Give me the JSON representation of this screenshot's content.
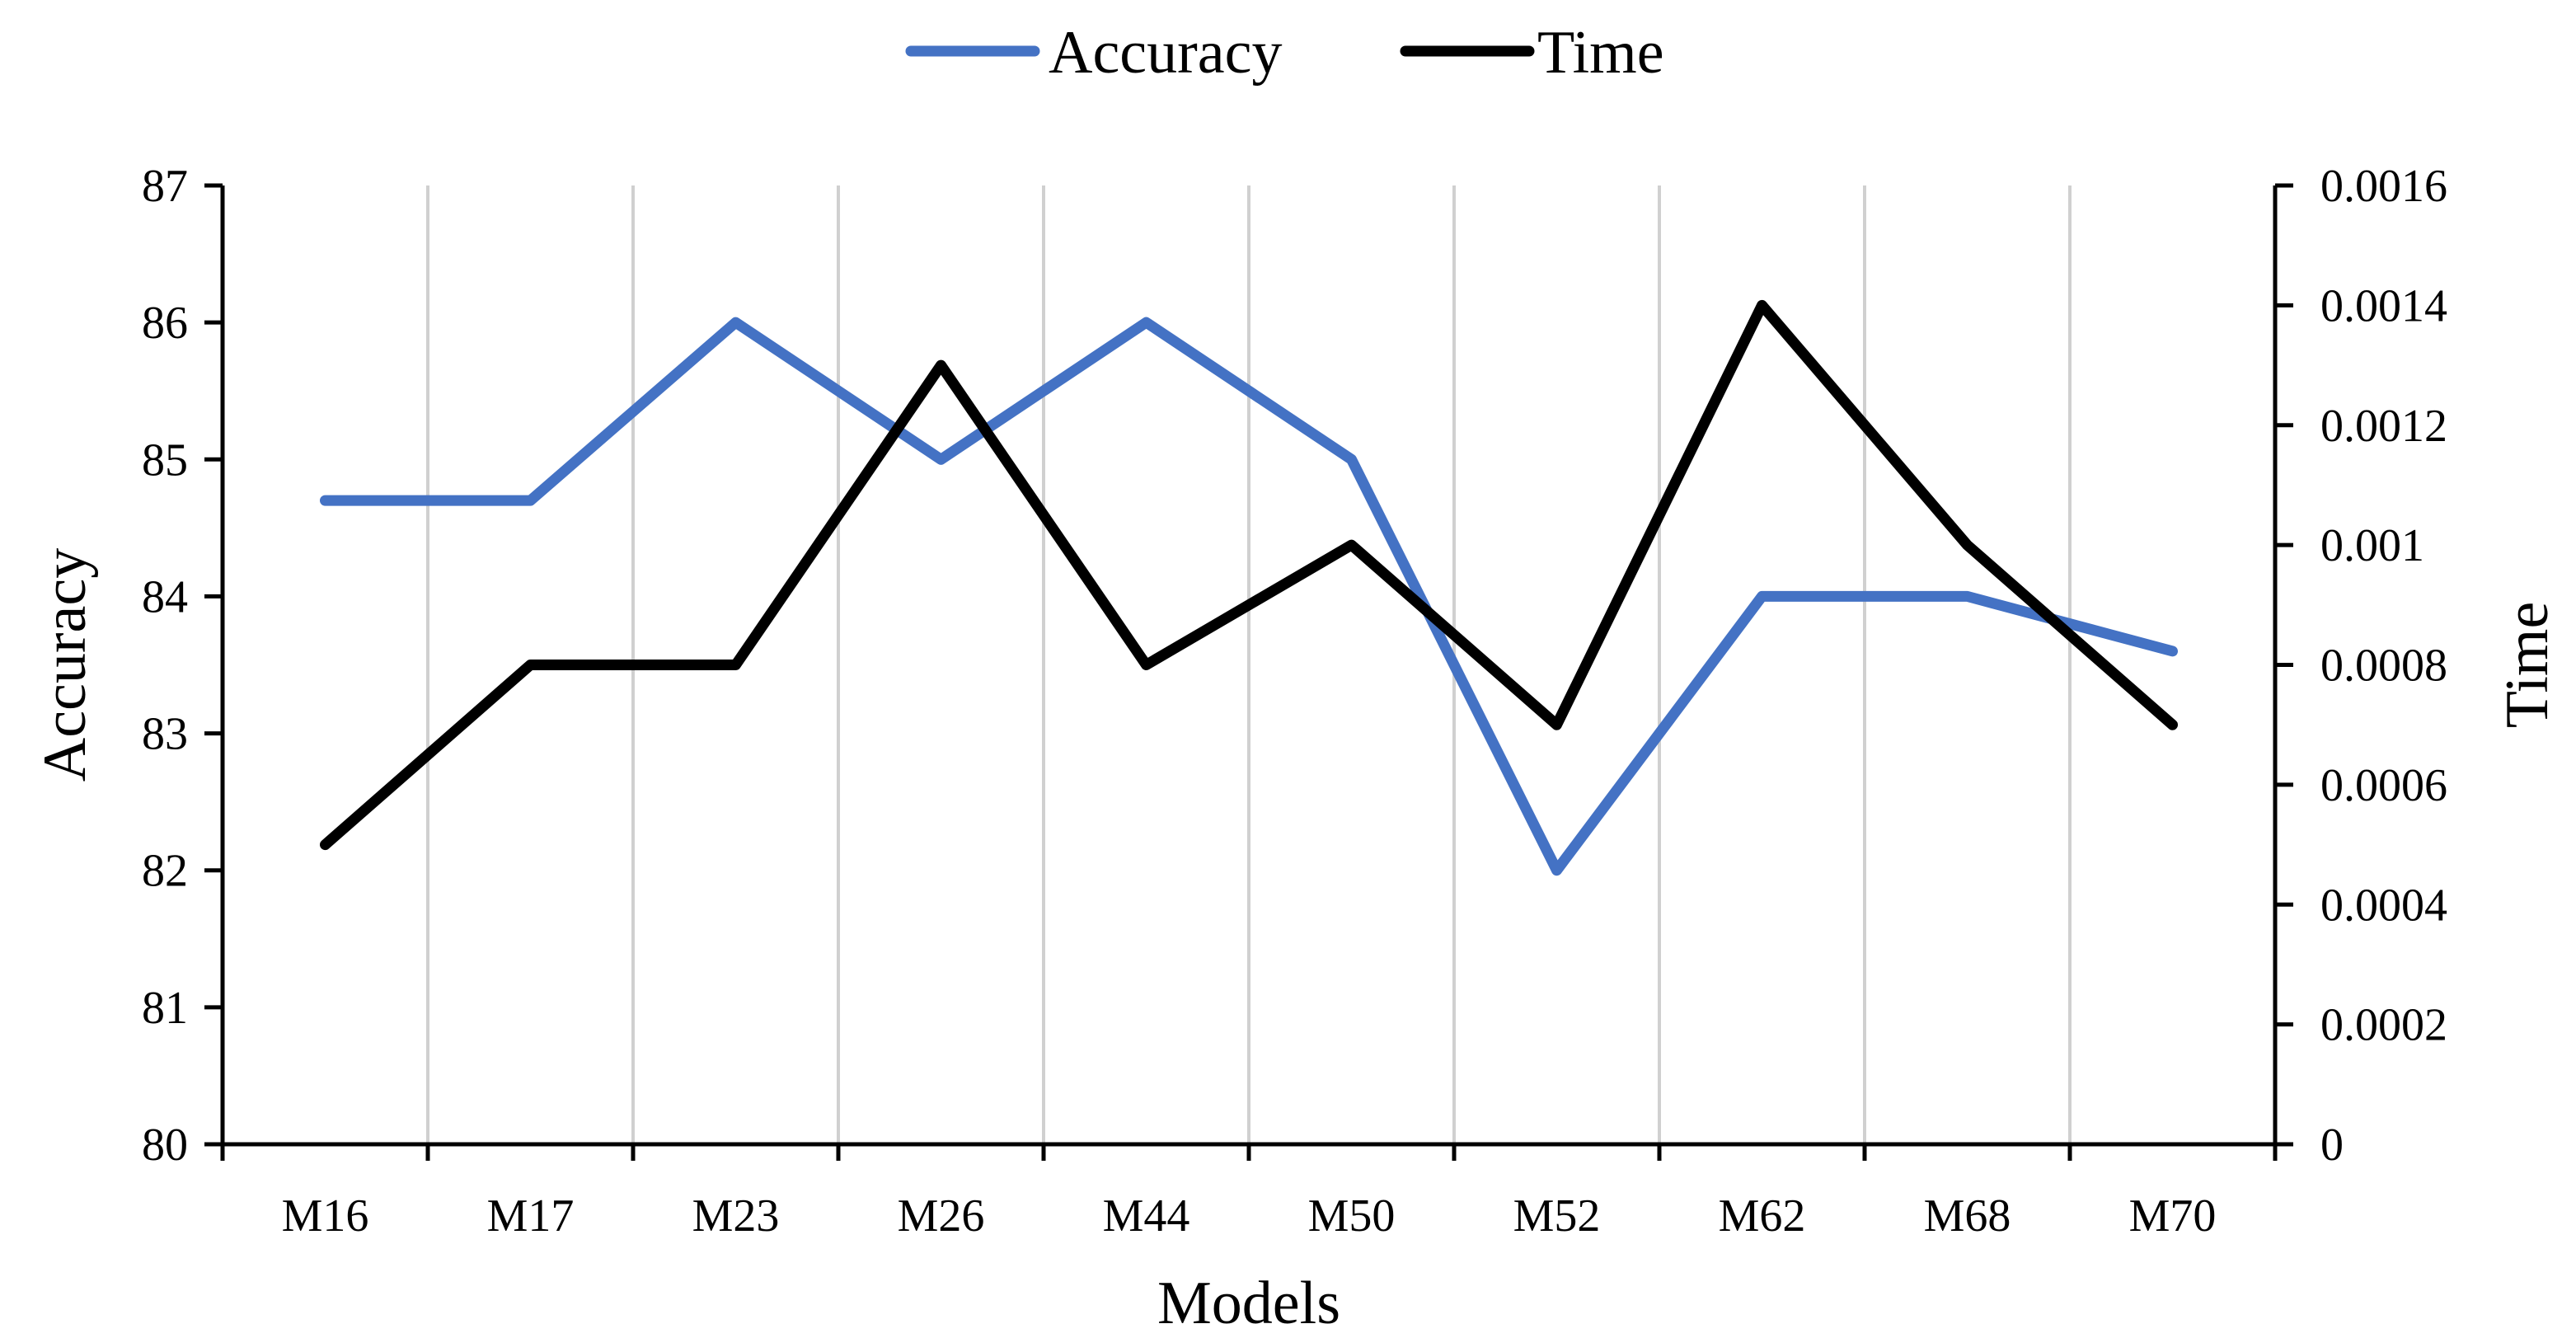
{
  "chart_data": {
    "type": "line",
    "title": "",
    "xlabel": "Models",
    "categories": [
      "M16",
      "M17",
      "M23",
      "M26",
      "M44",
      "M50",
      "M52",
      "M62",
      "M68",
      "M70"
    ],
    "y_left": {
      "label": "Accuracy",
      "lim": [
        80,
        87
      ],
      "ticks": [
        "80",
        "81",
        "82",
        "83",
        "84",
        "85",
        "86",
        "87"
      ]
    },
    "y_right": {
      "label": "Time",
      "lim": [
        0,
        0.0016
      ],
      "ticks": [
        "0",
        "0.0002",
        "0.0004",
        "0.0006",
        "0.0008",
        "0.001",
        "0.0012",
        "0.0014",
        "0.0016"
      ]
    },
    "grid": "vertical",
    "legend_position": "top-center",
    "series": [
      {
        "name": "Accuracy",
        "axis": "left",
        "color": "#4472C4",
        "values": [
          84.7,
          84.7,
          86,
          85,
          86,
          85,
          82,
          84,
          84,
          83.6
        ]
      },
      {
        "name": "Time",
        "axis": "right",
        "color": "#000000",
        "values": [
          0.0005,
          0.0008,
          0.0008,
          0.0013,
          0.0008,
          0.001,
          0.0007,
          0.0014,
          0.001,
          0.0007
        ]
      }
    ]
  }
}
